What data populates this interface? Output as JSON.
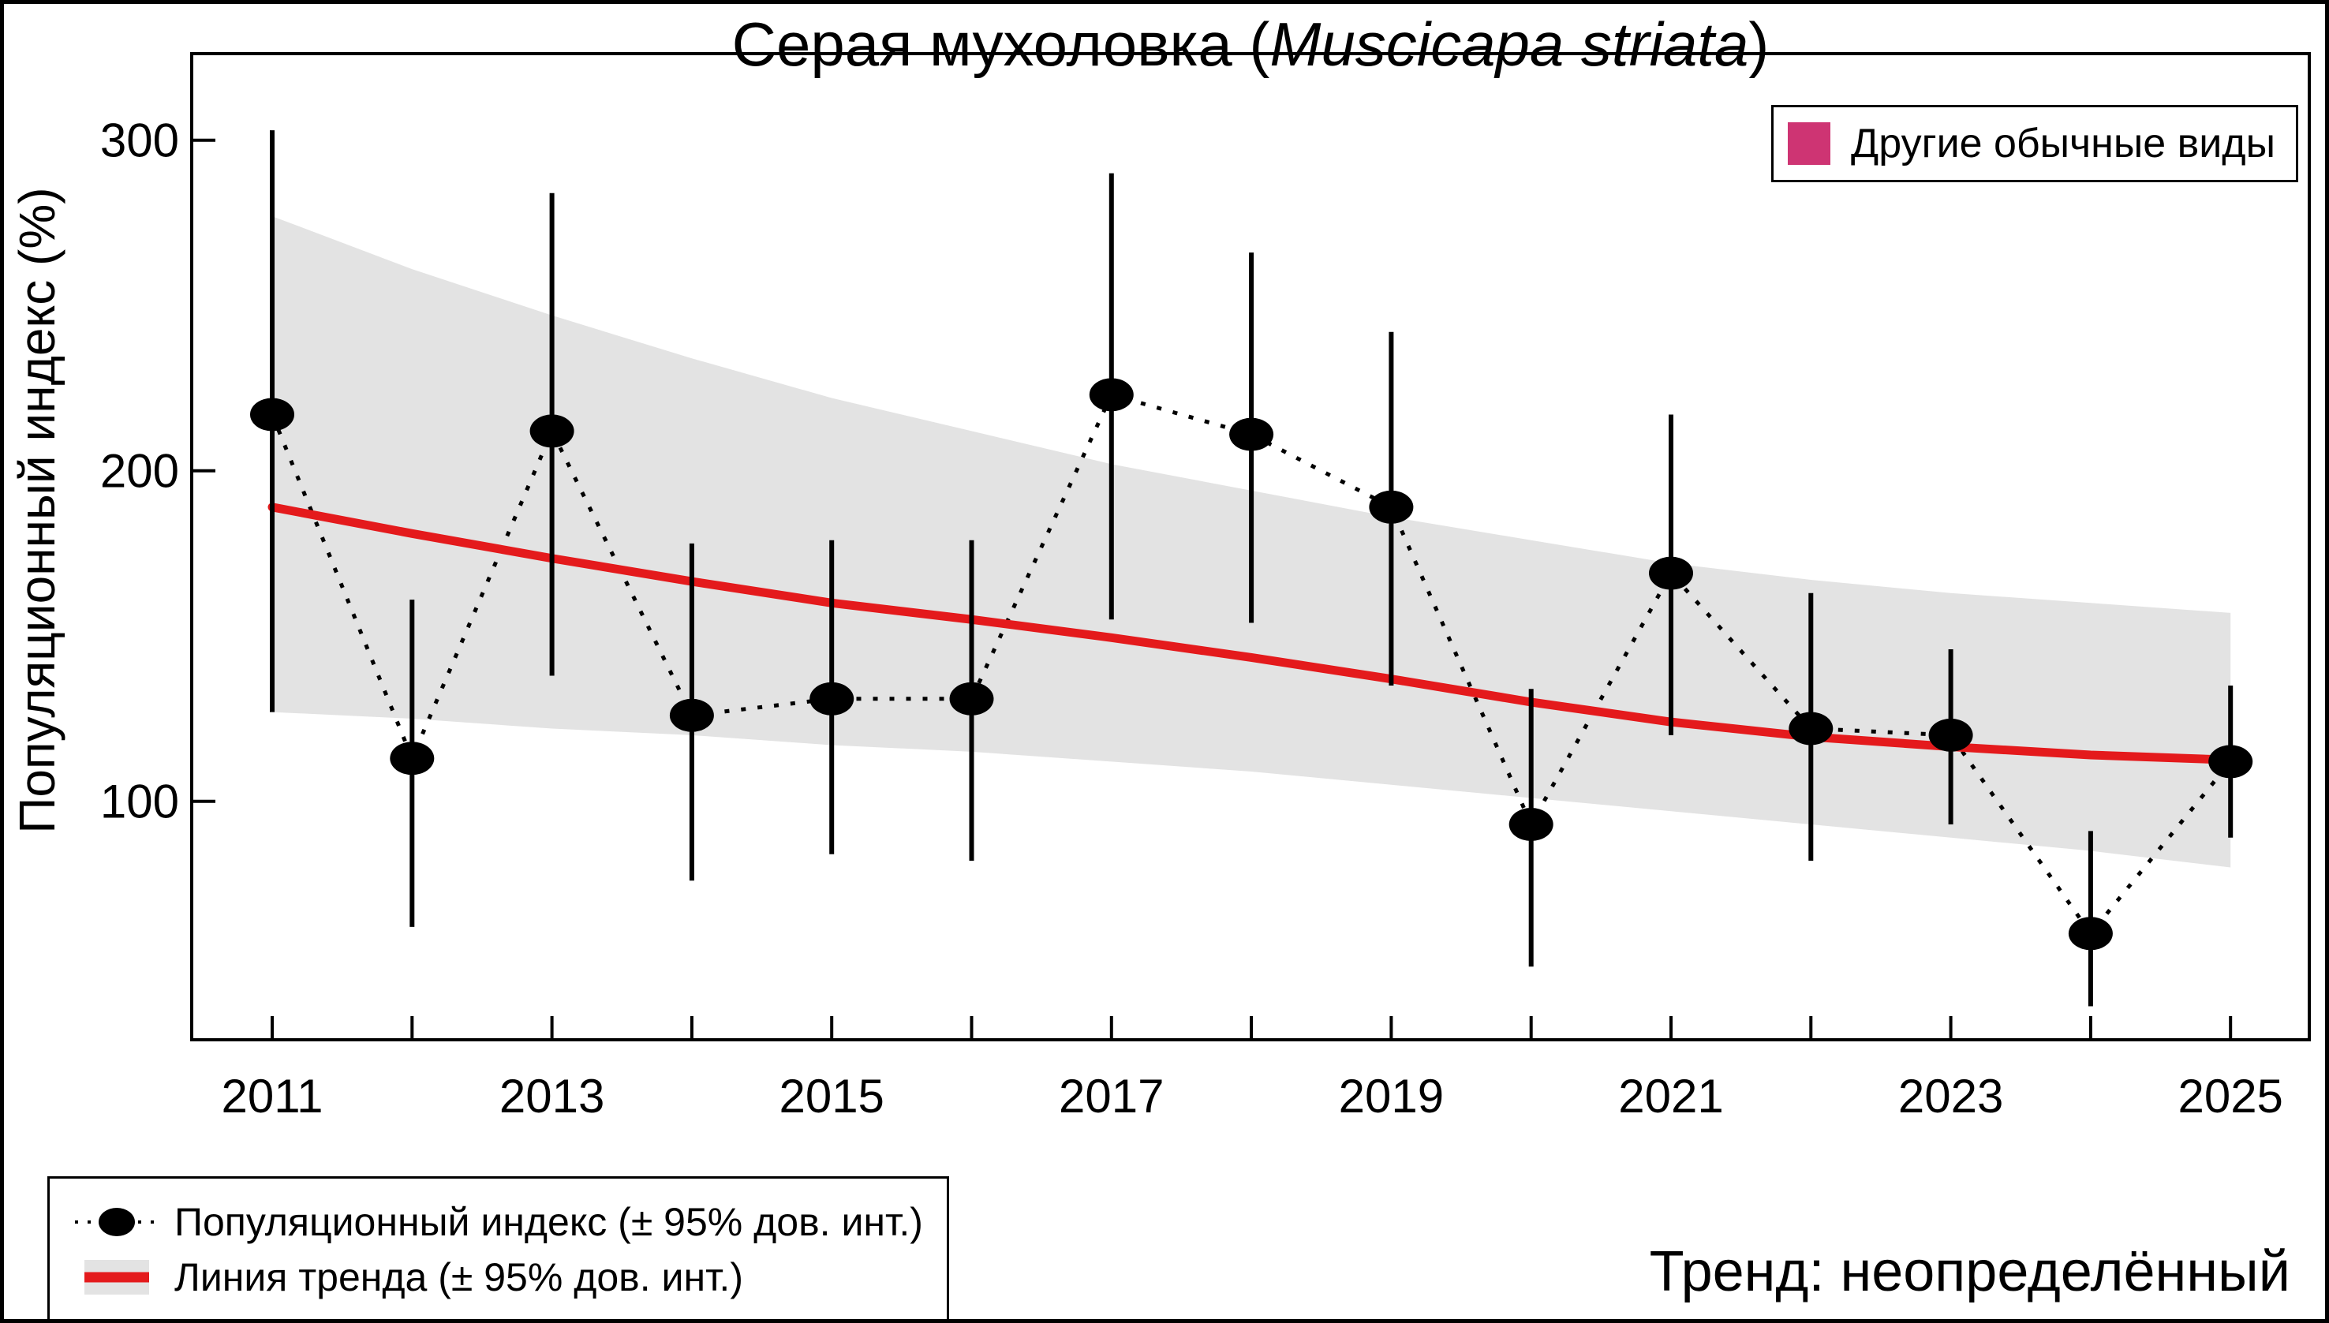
{
  "title": {
    "prefix": "Серая мухоловка (",
    "species": "Muscicapa striata",
    "suffix": ")"
  },
  "y_axis": {
    "label": "Популяционный индекс (%)",
    "ticks": [
      100,
      200,
      300
    ]
  },
  "x_axis": {
    "tick_years": [
      2011,
      2012,
      2013,
      2014,
      2015,
      2016,
      2017,
      2018,
      2019,
      2020,
      2021,
      2022,
      2023,
      2024,
      2025
    ],
    "label_years": [
      2011,
      2013,
      2015,
      2017,
      2019,
      2021,
      2023,
      2025
    ]
  },
  "legend_top_right": {
    "label": "Другие обычные виды",
    "swatch_color": "#ce3473"
  },
  "legend_bottom_left": {
    "items": [
      {
        "marker": "point-with-dotted-line",
        "label": "Популяционный индекс (± 95% дов. инт.)"
      },
      {
        "marker": "trend-line-with-band",
        "label": "Линия тренда (± 95% дов. инт.)"
      }
    ]
  },
  "trend_note": "Тренд: неопределённый",
  "colors": {
    "point": "#000000",
    "trend_line": "#e41a1c",
    "confidence_band": "#e3e3e3",
    "other_species_swatch": "#ce3473"
  },
  "chart_data": {
    "type": "line",
    "title": "Серая мухоловка (Muscicapa striata)",
    "xlabel": "",
    "ylabel": "Популяционный индекс (%)",
    "x": [
      2011,
      2012,
      2013,
      2014,
      2015,
      2016,
      2017,
      2018,
      2019,
      2020,
      2021,
      2022,
      2023,
      2024,
      2025
    ],
    "xlim": [
      2010.45,
      2025.55
    ],
    "ylim": [
      28,
      326
    ],
    "grid": false,
    "legend_position": "top-right and bottom-left",
    "series": [
      {
        "name": "Популяционный индекс (± 95% дов. инт.)",
        "style": "black points with vertical 95% CI error bars, dotted connector",
        "values": [
          217,
          113,
          212,
          126,
          131,
          131,
          223,
          211,
          189,
          93,
          169,
          122,
          120,
          60,
          112
        ],
        "ci_low": [
          127,
          62,
          138,
          76,
          84,
          82,
          155,
          154,
          135,
          50,
          120,
          82,
          93,
          38,
          89
        ],
        "ci_high": [
          303,
          161,
          284,
          178,
          179,
          179,
          290,
          266,
          242,
          134,
          217,
          163,
          146,
          91,
          135
        ]
      },
      {
        "name": "Линия тренда (± 95% дов. инт.)",
        "style": "thick red smooth trend line with gray confidence band",
        "values": [
          189,
          181,
          173.5,
          166.5,
          160,
          155,
          149.5,
          143.5,
          137,
          130,
          124,
          119.5,
          116.5,
          114,
          112.5
        ],
        "band_low": [
          127,
          125,
          122,
          120,
          117,
          115,
          112,
          109,
          105,
          101,
          97,
          93,
          89,
          85,
          80
        ],
        "band_high": [
          277,
          261,
          247,
          234,
          222,
          212,
          202,
          194,
          186,
          179,
          172,
          167,
          163,
          160,
          157
        ]
      }
    ]
  }
}
